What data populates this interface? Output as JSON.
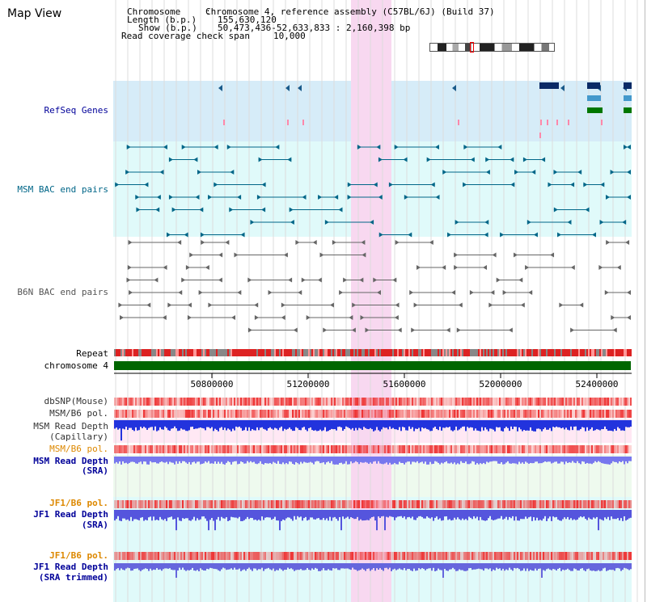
{
  "window": {
    "title": "Map View"
  },
  "info": {
    "chromosome_key": "Chromosome",
    "chromosome_value": "Chromosome 4, reference assembly (C57BL/6J) (Build 37)",
    "length_key": "Length (b.p.)",
    "length_value": "155,630,120",
    "show_key": "Show (b.p.)",
    "show_value": "50,473,436-52,633,833 : 2,160,398 bp",
    "coverage_key": "Read coverage check span",
    "coverage_value": "10,000"
  },
  "tracks": {
    "refseq": {
      "label": "RefSeq Genes",
      "color": "#000099"
    },
    "msm_bac": {
      "label": "MSM BAC end pairs",
      "color": "#006688"
    },
    "b6n_bac": {
      "label": "B6N BAC end pairs",
      "color": "#555555"
    },
    "repeat": {
      "label": "Repeat"
    },
    "chromosome": {
      "label": "chromosome 4"
    },
    "dbsnp": {
      "label": "dbSNP(Mouse)"
    },
    "msm_b6_pol_1": {
      "label": "MSM/B6 pol."
    },
    "msm_depth_cap_1": {
      "label": "MSM Read Depth"
    },
    "msm_depth_cap_2": {
      "label": "(Capillary)"
    },
    "msm_b6_pol_2": {
      "label": "MSM/B6 pol.",
      "color": "#dd8800"
    },
    "msm_depth_sra_1": {
      "label": "MSM Read Depth",
      "color": "#000099"
    },
    "msm_depth_sra_2": {
      "label": "(SRA)",
      "color": "#000099"
    },
    "jf1_pol_1": {
      "label": "JF1/B6 pol.",
      "color": "#dd8800"
    },
    "jf1_depth_sra_1": {
      "label": "JF1 Read Depth",
      "color": "#000099"
    },
    "jf1_depth_sra_2": {
      "label": "(SRA)",
      "color": "#000099"
    },
    "jf1_pol_2": {
      "label": "JF1/B6 pol.",
      "color": "#dd8800"
    },
    "jf1_depth_trim_1": {
      "label": "JF1 Read Depth",
      "color": "#000099"
    },
    "jf1_depth_trim_2": {
      "label": "(SRA trimmed)",
      "color": "#000099"
    }
  },
  "axis": {
    "ticks": [
      "50800000",
      "51200000",
      "51600000",
      "52000000",
      "52400000"
    ]
  },
  "colors": {
    "refseq_bg": "#d6ecf8",
    "msm_bg": "#e0fafa",
    "highlight": "#f8d8f0",
    "chromosome_bar": "#006600",
    "repeat_red": "#dd2222",
    "depth_blue": "#3333dd",
    "pol_red": "#e04040"
  }
}
